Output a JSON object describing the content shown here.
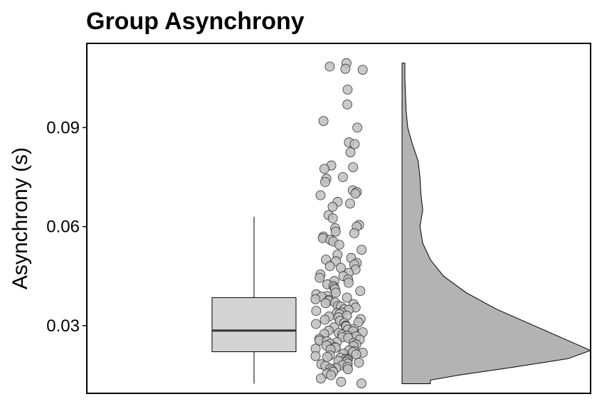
{
  "chart_data": {
    "type": "raincloud",
    "title": "Group Asynchrony",
    "xlabel": "",
    "ylabel": "Asynchrony (s)",
    "ylim": [
      0.0095,
      0.1155
    ],
    "yticks": [
      0.03,
      0.06,
      0.09
    ],
    "ytick_labels": [
      "0.03",
      "0.06",
      "0.09"
    ],
    "grid": false,
    "colors": {
      "box_fill": "#d3d3d3",
      "point_fill": "#c0c0c0",
      "density_fill": "#b3b3b3",
      "outline": "#000000"
    },
    "boxplot": {
      "min": 0.0124,
      "q1": 0.0221,
      "median": 0.0285,
      "q3": 0.0385,
      "max": 0.063
    },
    "points": [
      0.1095,
      0.1085,
      0.1078,
      0.1075,
      0.1015,
      0.097,
      0.092,
      0.09,
      0.0855,
      0.085,
      0.0825,
      0.0785,
      0.078,
      0.0775,
      0.075,
      0.0745,
      0.0735,
      0.071,
      0.0705,
      0.07,
      0.0695,
      0.0675,
      0.067,
      0.066,
      0.0635,
      0.0625,
      0.0605,
      0.06,
      0.0595,
      0.0585,
      0.058,
      0.057,
      0.0565,
      0.056,
      0.0555,
      0.0545,
      0.053,
      0.0515,
      0.0505,
      0.05,
      0.0495,
      0.049,
      0.0485,
      0.048,
      0.0475,
      0.047,
      0.046,
      0.0455,
      0.045,
      0.0445,
      0.044,
      0.0435,
      0.043,
      0.0425,
      0.042,
      0.0415,
      0.041,
      0.0405,
      0.04,
      0.0395,
      0.039,
      0.0388,
      0.0385,
      0.038,
      0.0378,
      0.0375,
      0.037,
      0.0368,
      0.0365,
      0.036,
      0.0358,
      0.0355,
      0.035,
      0.0348,
      0.0345,
      0.034,
      0.0338,
      0.0335,
      0.033,
      0.0328,
      0.0325,
      0.032,
      0.0318,
      0.0315,
      0.031,
      0.0308,
      0.0305,
      0.03,
      0.0298,
      0.0295,
      0.029,
      0.0288,
      0.0285,
      0.0283,
      0.028,
      0.0278,
      0.0275,
      0.0273,
      0.027,
      0.0268,
      0.0265,
      0.0263,
      0.026,
      0.0258,
      0.0255,
      0.0253,
      0.025,
      0.0248,
      0.0245,
      0.0243,
      0.024,
      0.0238,
      0.0235,
      0.0233,
      0.023,
      0.0228,
      0.0225,
      0.0223,
      0.022,
      0.0218,
      0.0215,
      0.0213,
      0.021,
      0.0208,
      0.0205,
      0.0203,
      0.02,
      0.0198,
      0.0195,
      0.0193,
      0.019,
      0.0188,
      0.0185,
      0.0183,
      0.018,
      0.0178,
      0.0175,
      0.0172,
      0.017,
      0.0168,
      0.0165,
      0.016,
      0.0155,
      0.015,
      0.014,
      0.013,
      0.0125
    ],
    "density": [
      [
        0.1095,
        0.015
      ],
      [
        0.105,
        0.015
      ],
      [
        0.1,
        0.018
      ],
      [
        0.095,
        0.022
      ],
      [
        0.09,
        0.03
      ],
      [
        0.085,
        0.055
      ],
      [
        0.08,
        0.085
      ],
      [
        0.075,
        0.095
      ],
      [
        0.07,
        0.1
      ],
      [
        0.065,
        0.11
      ],
      [
        0.06,
        0.095
      ],
      [
        0.055,
        0.11
      ],
      [
        0.05,
        0.15
      ],
      [
        0.045,
        0.22
      ],
      [
        0.04,
        0.34
      ],
      [
        0.035,
        0.5
      ],
      [
        0.03,
        0.7
      ],
      [
        0.025,
        0.9
      ],
      [
        0.0225,
        1.0
      ],
      [
        0.02,
        0.88
      ],
      [
        0.0175,
        0.6
      ],
      [
        0.015,
        0.3
      ],
      [
        0.0135,
        0.15
      ],
      [
        0.0124,
        0.15
      ]
    ]
  }
}
